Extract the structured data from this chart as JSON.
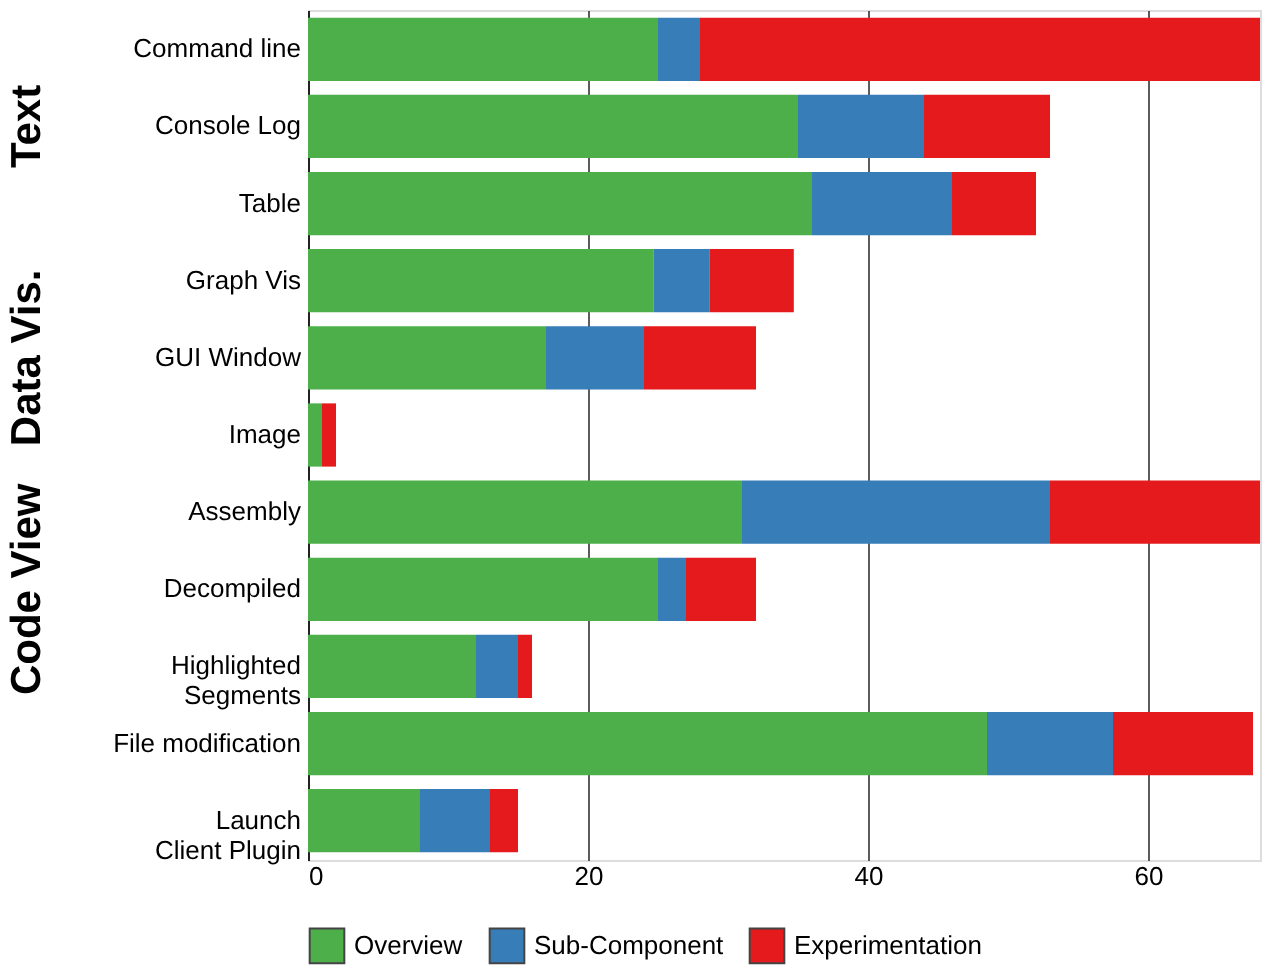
{
  "chart_data": {
    "type": "bar",
    "orientation": "horizontal",
    "stacked": true,
    "categories": [
      "Command line",
      "Console Log",
      "Table",
      "Graph Vis",
      "GUI Window",
      "Image",
      "Assembly",
      "Decompiled",
      "Highlighted\nSegments",
      "File modification",
      "Launch\nClient Plugin"
    ],
    "series": [
      {
        "name": "Overview",
        "color": "#4daf4a",
        "values": [
          25,
          35,
          36,
          24.7,
          17,
          1,
          31,
          25,
          12,
          48.5,
          8
        ]
      },
      {
        "name": "Sub-Component",
        "color": "#377eb8",
        "values": [
          3,
          9,
          10,
          4,
          7,
          0,
          22,
          2,
          3,
          9,
          5
        ]
      },
      {
        "name": "Experimentation",
        "color": "#e41a1c",
        "values": [
          40,
          9,
          6,
          6,
          8,
          1,
          15,
          5,
          1,
          10,
          2
        ]
      }
    ],
    "xlim": [
      0,
      68
    ],
    "xticks": [
      0,
      20,
      40,
      60
    ],
    "grid": "x",
    "legend": "bottom",
    "annotations": [
      "Text",
      "Data Vis.",
      "Code View"
    ]
  }
}
